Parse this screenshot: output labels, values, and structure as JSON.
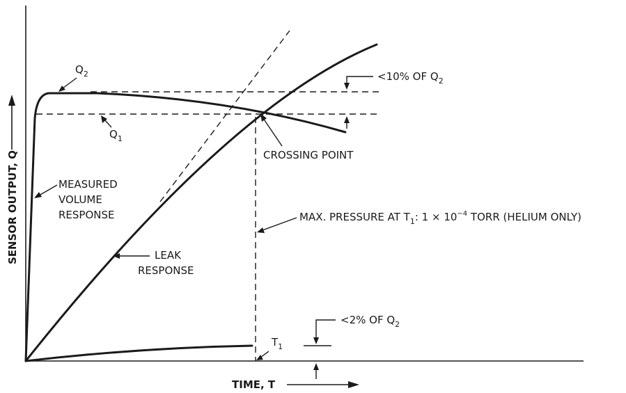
{
  "axes": {
    "y_label": "SENSOR OUTPUT, Q",
    "x_label": "TIME, T"
  },
  "labels": {
    "q2": {
      "main": "Q",
      "sub": "2"
    },
    "q1": {
      "main": "Q",
      "sub": "1"
    },
    "measured": [
      "MEASURED",
      "VOLUME",
      "RESPONSE"
    ],
    "leak": [
      "LEAK",
      "RESPONSE"
    ],
    "crossing": "CROSSING POINT",
    "pct10": {
      "prefix": "<10% OF Q",
      "sub": "2"
    },
    "pct2": {
      "prefix": "<2% OF Q",
      "sub": "2"
    },
    "max_pressure": {
      "prefix": "MAX. PRESSURE AT T",
      "sub": "1",
      "middle": ": 1 × 10",
      "sup": "−4",
      "suffix": " TORR (HELIUM ONLY)"
    },
    "t1": {
      "main": "T",
      "sub": "1"
    }
  }
}
